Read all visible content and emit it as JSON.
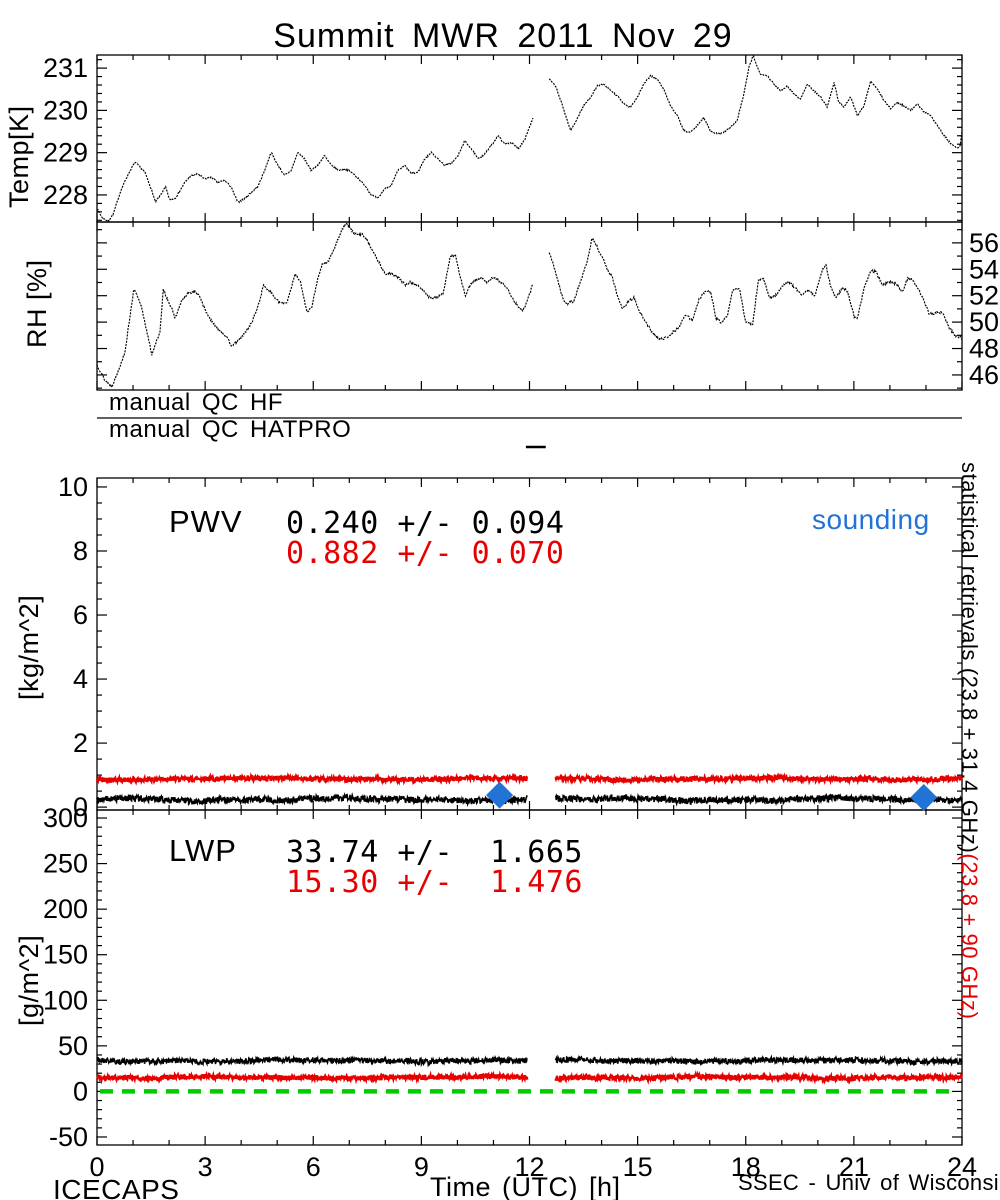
{
  "title": "Summit MWR 2011 Nov 29",
  "colors": {
    "black": "#000000",
    "red": "#e60000",
    "blue": "#2173d6",
    "green": "#00cc00"
  },
  "qc": {
    "hf_label": "manual QC HF",
    "hatpro_label": "manual QC HATPRO",
    "hatpro_flag": {
      "t_start": 11.9,
      "t_end": 12.45
    }
  },
  "pwv_panel": {
    "label": "PWV",
    "stat_black": "0.240 +/- 0.094",
    "stat_red": "0.882 +/- 0.070",
    "sounding_label": "sounding"
  },
  "lwp_panel": {
    "label": "LWP",
    "stat_black": "33.74 +/-  1.665",
    "stat_red": "15.30 +/-  1.476"
  },
  "right_axis_label": {
    "black": "statistical retrievals (23.8 + 31.4 GHz)",
    "red": "(23.8 + 90 GHz)"
  },
  "footer": {
    "project": "ICECAPS",
    "xaxis_title": "Time (UTC) [h]",
    "credit": "SSEC - Univ of Wisconsin"
  },
  "xaxis": {
    "lim": [
      0,
      24
    ],
    "ticks": [
      0,
      3,
      6,
      9,
      12,
      15,
      18,
      21,
      24
    ],
    "minor": 1,
    "major": 3,
    "label": "Time (UTC) [h]"
  },
  "chart_data": [
    {
      "id": "temp",
      "type": "line",
      "ylabel": "Temp[K]",
      "yticks": [
        228,
        229,
        230,
        231
      ],
      "ytick_minor": 0.2,
      "ylim": [
        227.36,
        231.31
      ],
      "labels_side": "left",
      "x_gap": [
        12.11,
        12.53
      ],
      "color_key": "black",
      "anchors": [
        [
          0.0,
          227.68
        ],
        [
          0.15,
          227.45
        ],
        [
          0.31,
          227.38
        ],
        [
          0.45,
          227.55
        ],
        [
          0.68,
          228.15
        ],
        [
          0.9,
          228.55
        ],
        [
          1.06,
          228.78
        ],
        [
          1.2,
          228.65
        ],
        [
          1.33,
          228.54
        ],
        [
          1.52,
          228.1
        ],
        [
          1.62,
          227.83
        ],
        [
          1.8,
          228.05
        ],
        [
          1.9,
          228.19
        ],
        [
          2.02,
          227.88
        ],
        [
          2.17,
          227.92
        ],
        [
          2.3,
          228.1
        ],
        [
          2.44,
          228.3
        ],
        [
          2.62,
          228.46
        ],
        [
          2.8,
          228.5
        ],
        [
          2.98,
          228.38
        ],
        [
          3.17,
          228.42
        ],
        [
          3.35,
          228.3
        ],
        [
          3.54,
          228.34
        ],
        [
          3.72,
          228.19
        ],
        [
          3.91,
          227.82
        ],
        [
          4.09,
          227.91
        ],
        [
          4.28,
          228.06
        ],
        [
          4.46,
          228.19
        ],
        [
          4.65,
          228.58
        ],
        [
          4.83,
          229.01
        ],
        [
          5.02,
          228.7
        ],
        [
          5.2,
          228.46
        ],
        [
          5.39,
          228.58
        ],
        [
          5.57,
          229.01
        ],
        [
          5.76,
          228.85
        ],
        [
          5.94,
          228.58
        ],
        [
          6.13,
          228.7
        ],
        [
          6.31,
          228.93
        ],
        [
          6.5,
          228.7
        ],
        [
          6.69,
          228.58
        ],
        [
          6.87,
          228.62
        ],
        [
          7.06,
          228.54
        ],
        [
          7.24,
          228.4
        ],
        [
          7.43,
          228.23
        ],
        [
          7.61,
          228.0
        ],
        [
          7.8,
          227.92
        ],
        [
          7.98,
          228.15
        ],
        [
          8.17,
          228.23
        ],
        [
          8.35,
          228.58
        ],
        [
          8.54,
          228.7
        ],
        [
          8.72,
          228.5
        ],
        [
          8.91,
          228.54
        ],
        [
          9.09,
          228.85
        ],
        [
          9.28,
          229.01
        ],
        [
          9.46,
          228.85
        ],
        [
          9.65,
          228.7
        ],
        [
          9.83,
          228.74
        ],
        [
          10.02,
          228.93
        ],
        [
          10.2,
          229.28
        ],
        [
          10.39,
          229.09
        ],
        [
          10.57,
          228.85
        ],
        [
          10.76,
          228.97
        ],
        [
          10.94,
          229.17
        ],
        [
          11.13,
          229.4
        ],
        [
          11.31,
          229.2
        ],
        [
          11.5,
          229.24
        ],
        [
          11.69,
          229.09
        ],
        [
          11.87,
          229.32
        ],
        [
          11.98,
          229.56
        ],
        [
          12.1,
          229.83
        ],
        [
          12.54,
          230.74
        ],
        [
          12.72,
          230.58
        ],
        [
          12.9,
          230.15
        ],
        [
          13.14,
          229.52
        ],
        [
          13.32,
          229.8
        ],
        [
          13.5,
          230.11
        ],
        [
          13.69,
          230.31
        ],
        [
          13.88,
          230.58
        ],
        [
          14.06,
          230.62
        ],
        [
          14.25,
          230.47
        ],
        [
          14.43,
          230.35
        ],
        [
          14.62,
          230.15
        ],
        [
          14.8,
          230.08
        ],
        [
          14.99,
          230.31
        ],
        [
          15.17,
          230.62
        ],
        [
          15.36,
          230.82
        ],
        [
          15.54,
          230.74
        ],
        [
          15.73,
          230.5
        ],
        [
          15.91,
          230.11
        ],
        [
          16.1,
          229.88
        ],
        [
          16.28,
          229.52
        ],
        [
          16.47,
          229.48
        ],
        [
          16.65,
          229.64
        ],
        [
          16.84,
          229.83
        ],
        [
          17.02,
          229.52
        ],
        [
          17.21,
          229.45
        ],
        [
          17.39,
          229.48
        ],
        [
          17.58,
          229.6
        ],
        [
          17.76,
          229.76
        ],
        [
          17.95,
          230.39
        ],
        [
          18.09,
          231.02
        ],
        [
          18.21,
          231.3
        ],
        [
          18.32,
          231.02
        ],
        [
          18.41,
          230.86
        ],
        [
          18.6,
          230.82
        ],
        [
          18.78,
          230.62
        ],
        [
          18.97,
          230.47
        ],
        [
          19.15,
          230.58
        ],
        [
          19.34,
          230.39
        ],
        [
          19.52,
          230.27
        ],
        [
          19.71,
          230.62
        ],
        [
          19.89,
          230.47
        ],
        [
          20.08,
          230.31
        ],
        [
          20.26,
          230.08
        ],
        [
          20.45,
          230.66
        ],
        [
          20.58,
          230.19
        ],
        [
          20.73,
          230.08
        ],
        [
          20.91,
          230.31
        ],
        [
          21.1,
          229.88
        ],
        [
          21.28,
          230.11
        ],
        [
          21.47,
          230.7
        ],
        [
          21.65,
          230.5
        ],
        [
          21.84,
          230.23
        ],
        [
          22.02,
          230.04
        ],
        [
          22.21,
          230.19
        ],
        [
          22.39,
          230.11
        ],
        [
          22.58,
          230.0
        ],
        [
          22.76,
          230.15
        ],
        [
          22.95,
          229.96
        ],
        [
          23.13,
          229.88
        ],
        [
          23.32,
          229.64
        ],
        [
          23.5,
          229.41
        ],
        [
          23.69,
          229.21
        ],
        [
          23.87,
          229.1
        ],
        [
          23.95,
          229.17
        ],
        [
          24.0,
          229.5
        ]
      ]
    },
    {
      "id": "rh",
      "type": "line",
      "ylabel": "RH [%]",
      "yticks": [
        46,
        48,
        50,
        52,
        54,
        56
      ],
      "ytick_minor": 1,
      "ylim": [
        44.86,
        57.58
      ],
      "labels_side": "right",
      "x_gap": [
        12.09,
        12.53
      ],
      "color_key": "black",
      "anchors": [
        [
          0.0,
          46.76
        ],
        [
          0.22,
          45.6
        ],
        [
          0.41,
          45.1
        ],
        [
          0.59,
          46.3
        ],
        [
          0.78,
          47.8
        ],
        [
          1.01,
          52.3
        ],
        [
          1.05,
          52.4
        ],
        [
          1.24,
          51.1
        ],
        [
          1.52,
          47.55
        ],
        [
          1.75,
          49.3
        ],
        [
          1.84,
          52.45
        ],
        [
          2.03,
          51.3
        ],
        [
          2.17,
          50.3
        ],
        [
          2.35,
          51.6
        ],
        [
          2.54,
          52.2
        ],
        [
          2.72,
          52.3
        ],
        [
          2.86,
          51.9
        ],
        [
          3.0,
          50.9
        ],
        [
          3.19,
          50.0
        ],
        [
          3.37,
          49.5
        ],
        [
          3.56,
          49.0
        ],
        [
          3.74,
          48.2
        ],
        [
          3.93,
          48.6
        ],
        [
          4.11,
          49.2
        ],
        [
          4.3,
          50.0
        ],
        [
          4.48,
          51.3
        ],
        [
          4.62,
          52.8
        ],
        [
          4.81,
          52.3
        ],
        [
          4.99,
          51.65
        ],
        [
          5.13,
          51.4
        ],
        [
          5.27,
          51.5
        ],
        [
          5.5,
          53.65
        ],
        [
          5.64,
          53.1
        ],
        [
          5.82,
          50.8
        ],
        [
          5.96,
          51.1
        ],
        [
          6.1,
          53.0
        ],
        [
          6.24,
          54.3
        ],
        [
          6.42,
          54.6
        ],
        [
          6.61,
          55.75
        ],
        [
          6.79,
          57.0
        ],
        [
          6.93,
          57.5
        ],
        [
          7.07,
          56.9
        ],
        [
          7.21,
          56.6
        ],
        [
          7.34,
          56.7
        ],
        [
          7.48,
          56.3
        ],
        [
          7.67,
          55.3
        ],
        [
          7.85,
          54.4
        ],
        [
          7.99,
          53.65
        ],
        [
          8.18,
          53.65
        ],
        [
          8.36,
          53.4
        ],
        [
          8.55,
          52.8
        ],
        [
          8.69,
          53.0
        ],
        [
          8.87,
          52.8
        ],
        [
          9.06,
          52.4
        ],
        [
          9.24,
          51.8
        ],
        [
          9.43,
          51.9
        ],
        [
          9.61,
          52.2
        ],
        [
          9.8,
          54.95
        ],
        [
          9.94,
          55.1
        ],
        [
          10.08,
          53.4
        ],
        [
          10.22,
          52.0
        ],
        [
          10.36,
          52.8
        ],
        [
          10.5,
          53.2
        ],
        [
          10.68,
          53.3
        ],
        [
          10.82,
          52.95
        ],
        [
          10.96,
          53.4
        ],
        [
          11.1,
          53.2
        ],
        [
          11.24,
          52.95
        ],
        [
          11.38,
          52.6
        ],
        [
          11.52,
          51.8
        ],
        [
          11.66,
          51.3
        ],
        [
          11.8,
          50.8
        ],
        [
          11.94,
          51.6
        ],
        [
          12.08,
          52.8
        ],
        [
          12.54,
          55.3
        ],
        [
          12.67,
          54.3
        ],
        [
          12.81,
          52.9
        ],
        [
          12.95,
          51.6
        ],
        [
          13.05,
          51.4
        ],
        [
          13.23,
          51.6
        ],
        [
          13.42,
          53.1
        ],
        [
          13.6,
          54.6
        ],
        [
          13.74,
          56.4
        ],
        [
          13.88,
          55.65
        ],
        [
          14.02,
          54.9
        ],
        [
          14.16,
          54.0
        ],
        [
          14.3,
          53.4
        ],
        [
          14.43,
          52.1
        ],
        [
          14.57,
          51.0
        ],
        [
          14.76,
          51.6
        ],
        [
          14.9,
          51.85
        ],
        [
          15.04,
          50.85
        ],
        [
          15.22,
          50.0
        ],
        [
          15.41,
          49.2
        ],
        [
          15.59,
          48.7
        ],
        [
          15.78,
          48.8
        ],
        [
          15.96,
          49.2
        ],
        [
          16.15,
          49.6
        ],
        [
          16.33,
          50.6
        ],
        [
          16.52,
          50.1
        ],
        [
          16.7,
          51.7
        ],
        [
          16.89,
          52.4
        ],
        [
          17.03,
          52.3
        ],
        [
          17.17,
          50.3
        ],
        [
          17.31,
          50.0
        ],
        [
          17.49,
          50.4
        ],
        [
          17.63,
          52.4
        ],
        [
          17.82,
          52.6
        ],
        [
          18.0,
          50.0
        ],
        [
          18.19,
          49.8
        ],
        [
          18.35,
          53.2
        ],
        [
          18.49,
          53.3
        ],
        [
          18.67,
          51.8
        ],
        [
          18.86,
          52.1
        ],
        [
          19.04,
          52.8
        ],
        [
          19.18,
          53.1
        ],
        [
          19.37,
          52.6
        ],
        [
          19.55,
          52.1
        ],
        [
          19.74,
          52.35
        ],
        [
          19.92,
          52.0
        ],
        [
          20.1,
          53.8
        ],
        [
          20.22,
          54.4
        ],
        [
          20.36,
          52.65
        ],
        [
          20.5,
          51.8
        ],
        [
          20.69,
          52.65
        ],
        [
          20.83,
          52.3
        ],
        [
          21.01,
          50.4
        ],
        [
          21.1,
          50.3
        ],
        [
          21.29,
          52.65
        ],
        [
          21.47,
          53.9
        ],
        [
          21.61,
          53.8
        ],
        [
          21.8,
          52.8
        ],
        [
          21.98,
          53.05
        ],
        [
          22.17,
          52.9
        ],
        [
          22.35,
          52.3
        ],
        [
          22.49,
          53.3
        ],
        [
          22.63,
          53.2
        ],
        [
          22.81,
          52.4
        ],
        [
          22.95,
          51.6
        ],
        [
          23.09,
          50.6
        ],
        [
          23.27,
          50.7
        ],
        [
          23.46,
          50.7
        ],
        [
          23.64,
          49.6
        ],
        [
          23.82,
          48.95
        ],
        [
          24.0,
          48.8
        ]
      ]
    },
    {
      "id": "pwv",
      "type": "line",
      "ylabel": "[kg/m^2]",
      "yticks": [
        0,
        2,
        4,
        6,
        8,
        10
      ],
      "ytick_minor": 0.5,
      "ylim": [
        -0.09,
        10.28
      ],
      "labels_side": "left",
      "x_gap": [
        11.95,
        12.72
      ],
      "series": [
        {
          "name": "statistical retrievals (23.8 + 31.4 GHz)",
          "color_key": "black",
          "mean": 0.24,
          "std": 0.094
        },
        {
          "name": "statistical retrievals (23.8 + 90 GHz)",
          "color_key": "red",
          "mean": 0.882,
          "std": 0.07
        }
      ],
      "sounding_points": [
        {
          "t": 11.17,
          "value": 0.375
        },
        {
          "t": 22.94,
          "value": 0.3
        }
      ]
    },
    {
      "id": "lwp",
      "type": "line",
      "ylabel": "[g/m^2]",
      "yticks": [
        -50,
        0,
        50,
        100,
        150,
        200,
        250,
        300
      ],
      "ytick_minor": 10,
      "ylim": [
        -58.8,
        308.8
      ],
      "labels_side": "left",
      "x_gap": [
        11.95,
        12.72
      ],
      "series": [
        {
          "name": "statistical retrievals (23.8 + 31.4 GHz)",
          "color_key": "black",
          "mean": 33.74,
          "std": 1.665
        },
        {
          "name": "statistical retrievals (23.8 + 90 GHz)",
          "color_key": "red",
          "mean": 15.3,
          "std": 1.476
        }
      ],
      "zero_line": {
        "value": 0,
        "color_key": "green",
        "style": "dashed"
      }
    }
  ]
}
